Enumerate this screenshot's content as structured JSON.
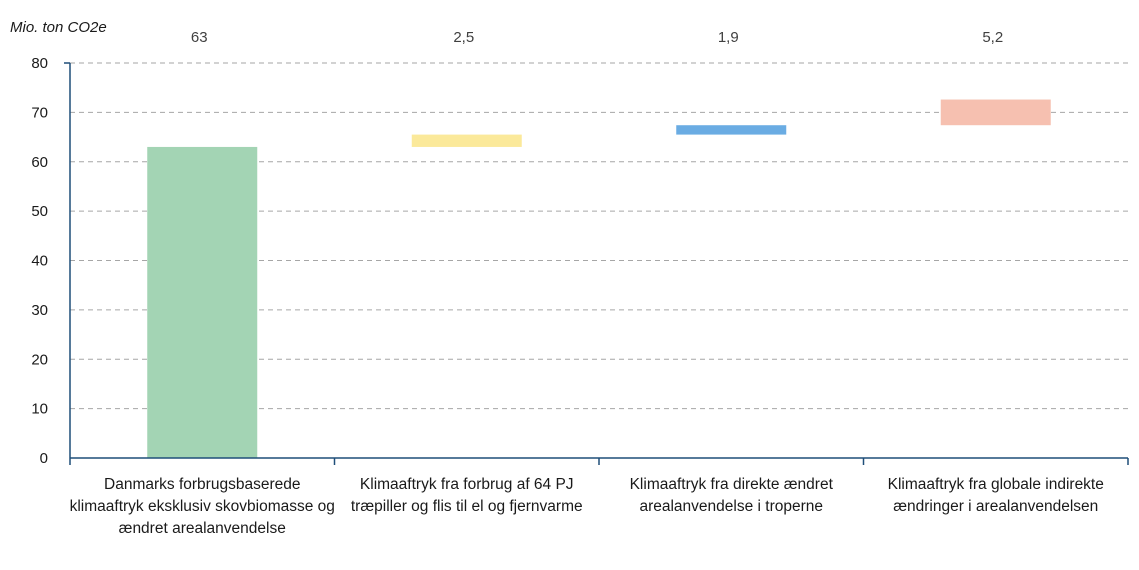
{
  "chart_data": {
    "type": "bar",
    "subtype": "waterfall",
    "ylabel": "Mio. ton CO2e",
    "ylim": [
      0,
      80
    ],
    "yticks": [
      0,
      10,
      20,
      30,
      40,
      50,
      60,
      70,
      80
    ],
    "grid": true,
    "categories": [
      "Danmarks forbrugsbaserede klimaaftryk eksklusiv skovbiomasse og ændret arealanvendelse",
      "Klimaaftryk fra forbrug af 64 PJ træpiller og flis til el og fjernvarme",
      "Klimaaftryk fra direkte ændret arealanvendelse i troperne",
      "Klimaaftryk fra globale indirekte ændringer i arealanvendelsen"
    ],
    "values": [
      63,
      2.5,
      1.9,
      5.2
    ],
    "data_labels": [
      "63",
      "2,5",
      "1,9",
      "5,2"
    ],
    "colors": [
      "#a3d4b4",
      "#fbe99a",
      "#6aace3",
      "#f6c0b0"
    ]
  }
}
